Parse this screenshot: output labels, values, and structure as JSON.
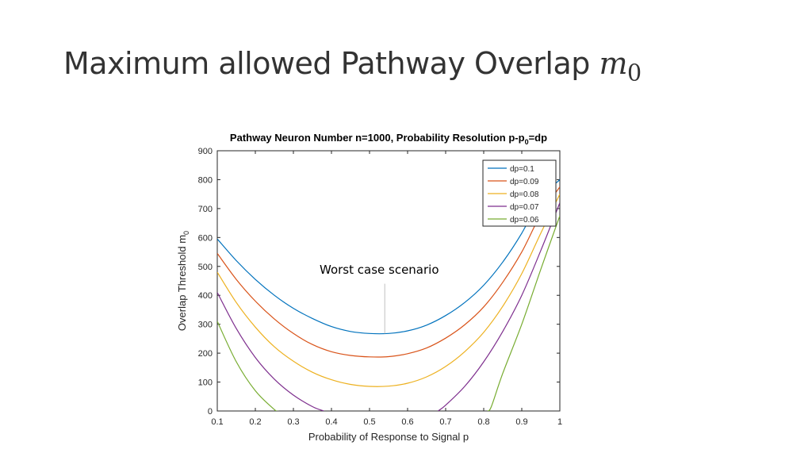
{
  "slide": {
    "title_text": "Maximum allowed Pathway Overlap ",
    "title_math_base": "m",
    "title_math_sub": "0"
  },
  "annotation": {
    "text": "Worst case scenario"
  },
  "chart_data": {
    "type": "line",
    "title": "Pathway Neuron Number n=1000, Probability Resolution p-p",
    "title_sub": "0",
    "title_tail": "=dp",
    "xlabel": "Probability of Response to Signal p",
    "ylabel": "Overlap Threshold m",
    "ylabel_sub": "0",
    "xlim": [
      0.1,
      1
    ],
    "ylim": [
      0,
      900
    ],
    "xticks": [
      0.1,
      0.2,
      0.3,
      0.4,
      0.5,
      0.6,
      0.7,
      0.8,
      0.9,
      1
    ],
    "xtick_labels": [
      "0.1",
      "0.2",
      "0.3",
      "0.4",
      "0.5",
      "0.6",
      "0.7",
      "0.8",
      "0.9",
      "1"
    ],
    "yticks": [
      0,
      100,
      200,
      300,
      400,
      500,
      600,
      700,
      800,
      900
    ],
    "ytick_labels": [
      "0",
      "100",
      "200",
      "300",
      "400",
      "500",
      "600",
      "700",
      "800",
      "900"
    ],
    "grid": false,
    "legend_position": "top-right",
    "series": [
      {
        "name": "dp=0.1",
        "color": "#0072bd",
        "x": [
          0.1,
          0.15,
          0.2,
          0.25,
          0.3,
          0.35,
          0.4,
          0.45,
          0.5,
          0.55,
          0.6,
          0.65,
          0.7,
          0.75,
          0.8,
          0.85,
          0.9,
          0.95,
          1.0
        ],
        "y": [
          595,
          520,
          455,
          400,
          355,
          320,
          292,
          275,
          268,
          268,
          277,
          297,
          330,
          375,
          435,
          515,
          615,
          735,
          800
        ]
      },
      {
        "name": "dp=0.09",
        "color": "#d95319",
        "x": [
          0.1,
          0.15,
          0.2,
          0.25,
          0.3,
          0.35,
          0.4,
          0.45,
          0.5,
          0.55,
          0.6,
          0.65,
          0.7,
          0.75,
          0.8,
          0.85,
          0.9,
          0.95,
          1.0
        ],
        "y": [
          545,
          455,
          380,
          318,
          268,
          230,
          205,
          192,
          187,
          188,
          198,
          218,
          252,
          298,
          360,
          445,
          550,
          680,
          775
        ]
      },
      {
        "name": "dp=0.08",
        "color": "#edb120",
        "x": [
          0.1,
          0.15,
          0.2,
          0.25,
          0.3,
          0.35,
          0.4,
          0.45,
          0.5,
          0.55,
          0.6,
          0.65,
          0.7,
          0.75,
          0.8,
          0.85,
          0.9,
          0.95,
          1.0
        ],
        "y": [
          480,
          375,
          290,
          222,
          172,
          134,
          108,
          92,
          85,
          86,
          96,
          118,
          154,
          205,
          272,
          362,
          475,
          615,
          750
        ]
      },
      {
        "name": "dp=0.07",
        "color": "#7e2f8e",
        "x": [
          0.1,
          0.15,
          0.2,
          0.25,
          0.3,
          0.35,
          0.38,
          0.4,
          0.5,
          0.6,
          0.68,
          0.7,
          0.75,
          0.8,
          0.85,
          0.9,
          0.95,
          1.0
        ],
        "y": [
          410,
          285,
          185,
          110,
          55,
          15,
          0,
          null,
          null,
          null,
          0,
          20,
          85,
          170,
          275,
          400,
          555,
          720
        ]
      },
      {
        "name": "dp=0.06",
        "color": "#77ac30",
        "x": [
          0.1,
          0.15,
          0.2,
          0.25,
          0.26,
          0.5,
          0.81,
          0.82,
          0.85,
          0.9,
          0.95,
          1.0
        ],
        "y": [
          310,
          170,
          70,
          5,
          0,
          null,
          0,
          15,
          130,
          300,
          490,
          675
        ]
      }
    ],
    "annotation_marker": {
      "x": 0.54,
      "y_from": 268,
      "y_to": 440
    }
  }
}
